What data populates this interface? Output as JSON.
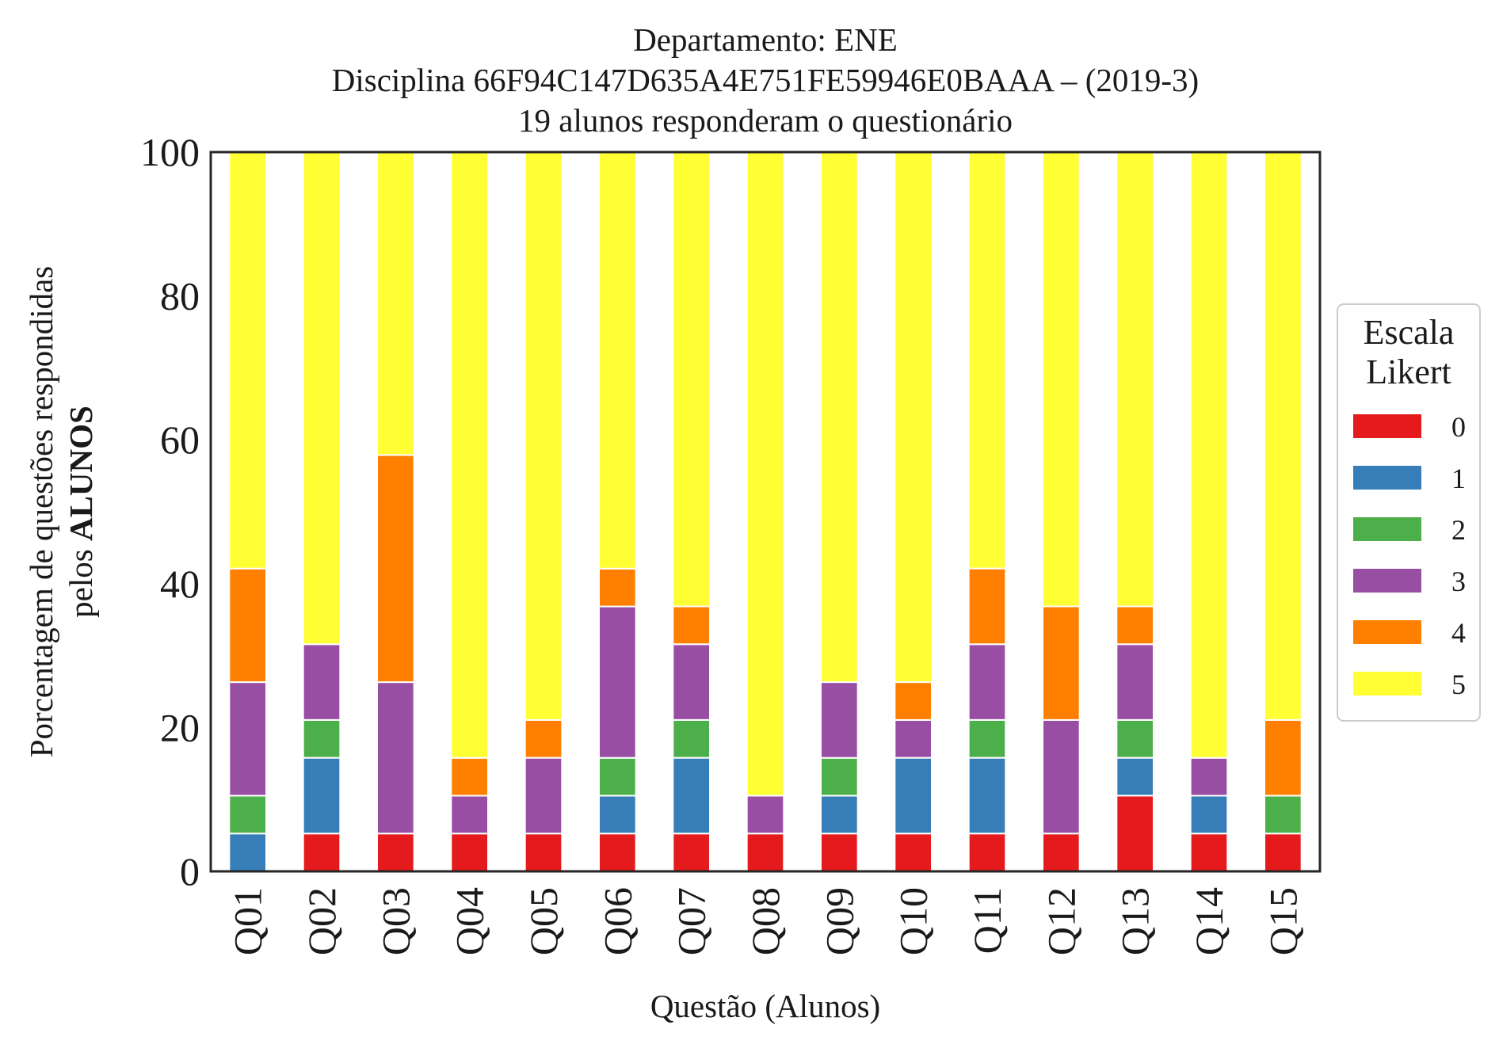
{
  "chart_data": {
    "type": "bar",
    "stacked": true,
    "title_lines": [
      "Departamento: ENE",
      "Disciplina 66F94C147D635A4E751FE59946E0BAAA – (2019-3)",
      "19 alunos responderam o questionário"
    ],
    "ylabel_line1": "Porcentagem de questões respondidas",
    "ylabel_line2_prefix": "pelos ",
    "ylabel_line2_bold": "ALUNOS",
    "xlabel": "Questão (Alunos)",
    "ylim": [
      0,
      100
    ],
    "yticks": [
      "0",
      "20",
      "40",
      "60",
      "80",
      "100"
    ],
    "categories": [
      "Q01",
      "Q02",
      "Q03",
      "Q04",
      "Q05",
      "Q06",
      "Q07",
      "Q08",
      "Q09",
      "Q10",
      "Q11",
      "Q12",
      "Q13",
      "Q14",
      "Q15"
    ],
    "legend": {
      "title_line1": "Escala",
      "title_line2": "Likert",
      "placement": "center-right"
    },
    "grid": false,
    "series": [
      {
        "name": "0",
        "color": "#e41a1c",
        "values": [
          0,
          5.26,
          5.26,
          5.26,
          5.26,
          5.26,
          5.26,
          5.26,
          5.26,
          5.26,
          5.26,
          5.26,
          10.53,
          5.26,
          5.26
        ]
      },
      {
        "name": "1",
        "color": "#377eb8",
        "values": [
          5.26,
          10.53,
          0,
          0,
          0,
          5.26,
          10.53,
          0,
          5.26,
          10.53,
          10.53,
          0,
          5.26,
          5.26,
          0
        ]
      },
      {
        "name": "2",
        "color": "#4daf4a",
        "values": [
          5.26,
          5.26,
          0,
          0,
          0,
          5.26,
          5.26,
          0,
          5.26,
          0,
          5.26,
          0,
          5.26,
          0,
          5.26
        ]
      },
      {
        "name": "3",
        "color": "#984ea3",
        "values": [
          15.79,
          10.53,
          21.05,
          5.26,
          10.53,
          21.05,
          10.53,
          5.26,
          10.53,
          5.26,
          10.53,
          15.79,
          10.53,
          5.26,
          0
        ]
      },
      {
        "name": "4",
        "color": "#ff7f00",
        "values": [
          15.79,
          0,
          31.58,
          5.26,
          5.26,
          5.26,
          5.26,
          0,
          0,
          5.26,
          10.53,
          15.79,
          5.26,
          0,
          10.53
        ]
      },
      {
        "name": "5",
        "color": "#ffff33",
        "values": [
          57.89,
          68.42,
          42.11,
          84.21,
          78.95,
          57.89,
          63.16,
          89.47,
          73.68,
          73.68,
          57.89,
          63.16,
          63.16,
          84.21,
          78.95
        ]
      }
    ]
  }
}
